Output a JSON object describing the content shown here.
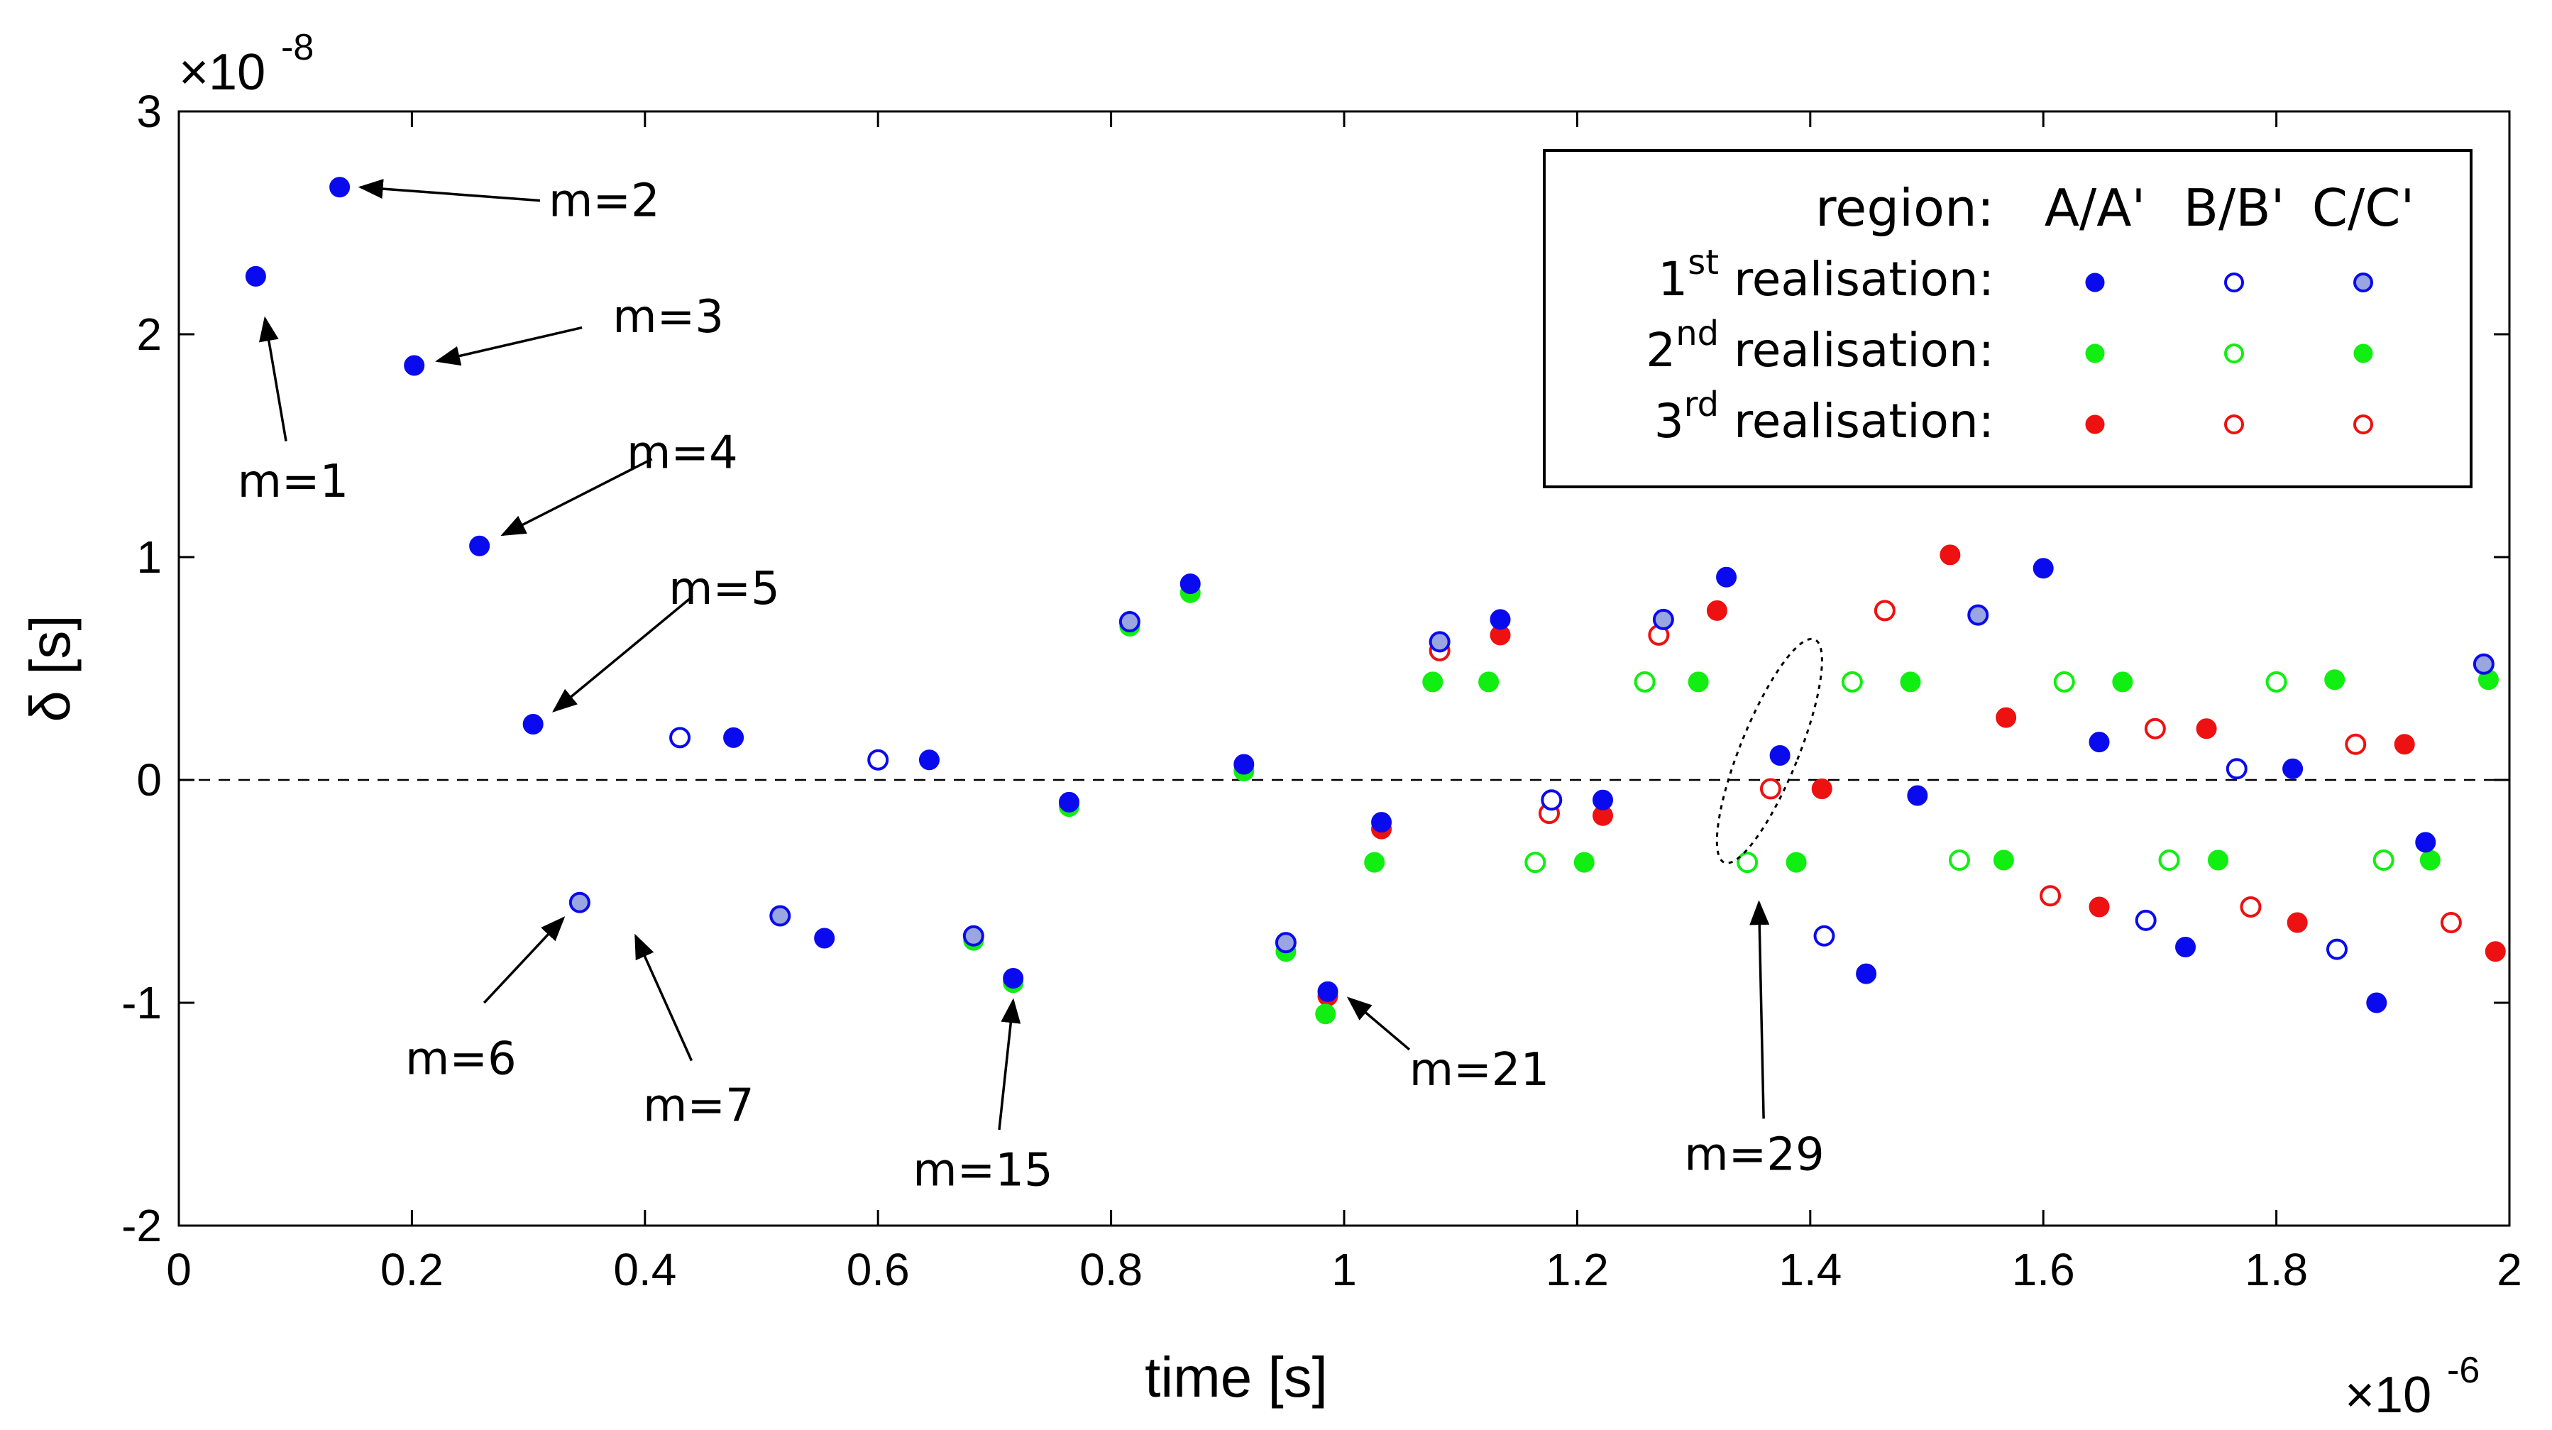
{
  "chart_data": {
    "type": "scatter",
    "xlabel": "time [s]",
    "ylabel": "δ [s]",
    "x_multiplier": "×10",
    "x_exponent": "-6",
    "y_multiplier": "×10",
    "y_exponent": "-8",
    "xlim": [
      0,
      2
    ],
    "ylim": [
      -2,
      3
    ],
    "x_ticks": [
      0,
      0.2,
      0.4,
      0.6,
      0.8,
      1,
      1.2,
      1.4,
      1.6,
      1.8,
      2
    ],
    "x_tick_labels": [
      "0",
      "0.2",
      "0.4",
      "0.6",
      "0.8",
      "1",
      "1.2",
      "1.4",
      "1.6",
      "1.8",
      "2"
    ],
    "y_ticks": [
      -2,
      -1,
      0,
      1,
      2,
      3
    ],
    "y_tick_labels": [
      "-2",
      "-1",
      "0",
      "1",
      "2",
      "3"
    ],
    "reference_line": {
      "y": 0,
      "style": "dashed"
    },
    "legend": {
      "placement": "top-right",
      "header_label": "region:",
      "columns": [
        "A/A'",
        "B/B'",
        "C/C'"
      ],
      "rows": [
        {
          "prefix": "1",
          "sup": "st",
          "suffix": " realisation:"
        },
        {
          "prefix": "2",
          "sup": "nd",
          "suffix": " realisation:"
        },
        {
          "prefix": "3",
          "sup": "rd",
          "suffix": " realisation:"
        }
      ]
    },
    "colors": {
      "r1": "#0a0aee",
      "r1_fill_c": "#9aa6e0",
      "r2": "#11ee11",
      "r3": "#ee1111"
    },
    "series": [
      {
        "realisation": 1,
        "region": "A/A'",
        "marker": "filled",
        "x": [
          0.066,
          0.138,
          0.202,
          0.258,
          0.304,
          0.476,
          0.554,
          0.644,
          0.764,
          0.868,
          0.914,
          0.716,
          0.986,
          1.032,
          1.134,
          1.222,
          1.328,
          1.374,
          1.448,
          1.492,
          1.6,
          1.648,
          1.722,
          1.814,
          1.886,
          1.928
        ],
        "y": [
          2.26,
          2.66,
          1.86,
          1.05,
          0.25,
          0.19,
          -0.71,
          0.09,
          -0.1,
          0.88,
          0.07,
          -0.89,
          -0.95,
          -0.19,
          0.72,
          -0.09,
          0.91,
          0.11,
          -0.87,
          -0.07,
          0.95,
          0.17,
          -0.75,
          0.05,
          -1.0,
          -0.28
        ]
      },
      {
        "realisation": 1,
        "region": "B/B'",
        "marker": "open",
        "x": [
          0.43,
          0.6,
          1.178,
          1.412,
          1.688,
          1.766,
          1.852
        ],
        "y": [
          0.19,
          0.09,
          -0.09,
          -0.7,
          -0.63,
          0.05,
          -0.76
        ]
      },
      {
        "realisation": 1,
        "region": "C/C'",
        "marker": "filled-light",
        "x": [
          0.344,
          0.516,
          0.682,
          0.816,
          0.95,
          1.082,
          1.274,
          1.544,
          1.978
        ],
        "y": [
          -0.55,
          -0.61,
          -0.7,
          0.71,
          -0.73,
          0.62,
          0.72,
          0.74,
          0.52
        ]
      },
      {
        "realisation": 2,
        "region": "A/A'",
        "marker": "filled",
        "x": [
          0.764,
          0.868,
          0.914,
          0.716,
          0.984,
          1.026,
          1.124,
          1.206,
          1.304,
          1.388,
          1.486,
          1.566,
          1.668,
          1.75,
          1.85,
          1.932
        ],
        "y": [
          -0.12,
          0.84,
          0.04,
          -0.91,
          -1.05,
          -0.37,
          0.44,
          -0.37,
          0.44,
          -0.37,
          0.44,
          -0.36,
          0.44,
          -0.36,
          0.45,
          -0.36
        ]
      },
      {
        "realisation": 2,
        "region": "B/B'",
        "marker": "open",
        "x": [
          1.164,
          1.258,
          1.346,
          1.436,
          1.528,
          1.618,
          1.708,
          1.8,
          1.892
        ],
        "y": [
          -0.37,
          0.44,
          -0.37,
          0.44,
          -0.36,
          0.44,
          -0.36,
          0.44,
          -0.36
        ]
      },
      {
        "realisation": 2,
        "region": "C/C'",
        "marker": "filled-light",
        "x": [
          0.682,
          0.816,
          0.95,
          1.076,
          1.982
        ],
        "y": [
          -0.72,
          0.69,
          -0.77,
          0.44,
          0.45
        ]
      },
      {
        "realisation": 3,
        "region": "A/A'",
        "marker": "filled",
        "x": [
          0.986,
          1.032,
          1.134,
          1.222,
          1.32,
          1.41,
          1.52,
          1.568,
          1.648,
          1.74,
          1.818,
          1.91,
          1.988
        ],
        "y": [
          -0.97,
          -0.22,
          0.65,
          -0.16,
          0.76,
          -0.04,
          1.01,
          0.28,
          -0.57,
          0.23,
          -0.64,
          0.16,
          -0.77
        ]
      },
      {
        "realisation": 3,
        "region": "B/B'",
        "marker": "open",
        "x": [
          1.176,
          1.366,
          1.464,
          1.606,
          1.696,
          1.778,
          1.868,
          1.95
        ],
        "y": [
          -0.15,
          -0.04,
          0.76,
          -0.52,
          0.23,
          -0.57,
          0.16,
          -0.64
        ]
      },
      {
        "realisation": 3,
        "region": "C/C'",
        "marker": "open",
        "x": [
          1.082,
          1.27
        ],
        "y": [
          0.58,
          0.65
        ]
      }
    ],
    "annotations": [
      {
        "text": "m=1",
        "label_x": 0.098,
        "label_y": 1.34,
        "tail_x": 0.092,
        "tail_y": 1.52,
        "tip_x": 0.074,
        "tip_y": 2.07
      },
      {
        "text": "m=2",
        "label_x": 0.365,
        "label_y": 2.6,
        "tail_x": 0.31,
        "tail_y": 2.6,
        "tip_x": 0.156,
        "tip_y": 2.66
      },
      {
        "text": "m=3",
        "label_x": 0.42,
        "label_y": 2.08,
        "tail_x": 0.346,
        "tail_y": 2.03,
        "tip_x": 0.222,
        "tip_y": 1.88
      },
      {
        "text": "m=4",
        "label_x": 0.432,
        "label_y": 1.47,
        "tail_x": 0.406,
        "tail_y": 1.44,
        "tip_x": 0.278,
        "tip_y": 1.1
      },
      {
        "text": "m=5",
        "label_x": 0.468,
        "label_y": 0.86,
        "tail_x": 0.44,
        "tail_y": 0.82,
        "tip_x": 0.322,
        "tip_y": 0.31
      },
      {
        "text": "m=6",
        "label_x": 0.242,
        "label_y": -1.25,
        "tail_x": 0.262,
        "tail_y": -1.0,
        "tip_x": 0.33,
        "tip_y": -0.62
      },
      {
        "text": "m=7",
        "label_x": 0.446,
        "label_y": -1.46,
        "tail_x": 0.44,
        "tail_y": -1.26,
        "tip_x": 0.392,
        "tip_y": -0.7
      },
      {
        "text": "m=15",
        "label_x": 0.69,
        "label_y": -1.75,
        "tail_x": 0.704,
        "tail_y": -1.57,
        "tip_x": 0.716,
        "tip_y": -0.99
      },
      {
        "text": "m=21",
        "label_x": 1.116,
        "label_y": -1.3,
        "tail_x": 1.056,
        "tail_y": -1.21,
        "tip_x": 1.004,
        "tip_y": -0.98
      },
      {
        "text": "m=29",
        "label_x": 1.352,
        "label_y": -1.68,
        "tail_x": 1.36,
        "tail_y": -1.52,
        "tip_x": 1.356,
        "tip_y": -0.55
      }
    ],
    "highlight_ellipse": {
      "cx": 1.365,
      "cy": 0.13,
      "rx": 0.025,
      "ry": 0.54,
      "angle_deg": 22
    }
  }
}
